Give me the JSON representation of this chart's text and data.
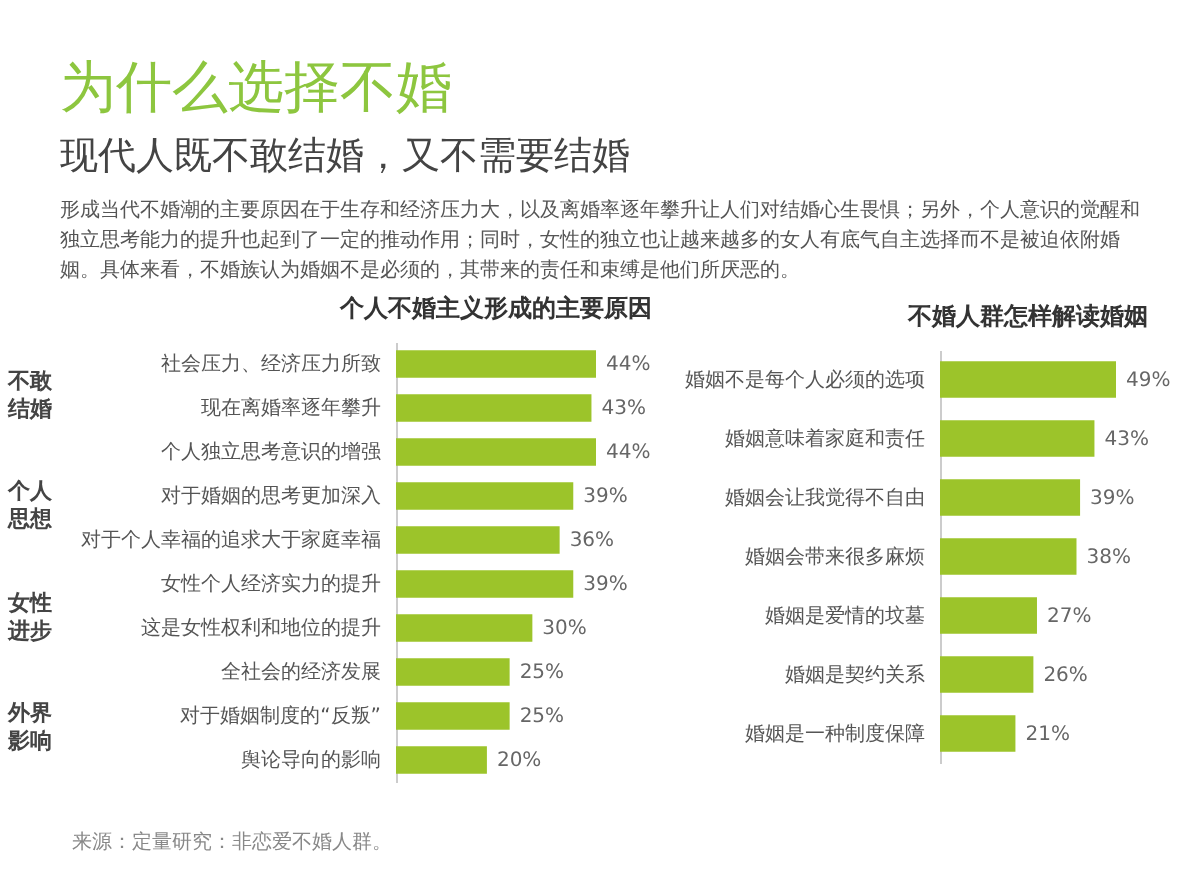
{
  "chart_data": [
    {
      "type": "other",
      "title": "为什么选择不婚",
      "subtitle": "现代人既不敢结婚，又不需要结婚",
      "annotations": [
        "形成当代不婚潮的主要原因在于生存和经济压力大，以及离婚率逐年攀升让人们对结婚心生畏惧；另外，个人意识的觉醒和独立思考能力的提升也起到了一定的推动作用；同时，女性的独立也让越来越多的女人有底气自主选择而不是被迫依附婚姻。具体来看，不婚族认为婚姻不是必须的，其带来的责任和束缚是他们所厌恶的。",
        "来源：定量研究：非恋爱不婚人群。"
      ]
    },
    {
      "type": "bar",
      "orientation": "horizontal",
      "title": "个人不婚主义形成的主要原因",
      "color": "#9cc42a",
      "categories": [
        "社会压力、经济压力所致",
        "现在离婚率逐年攀升",
        "个人独立思考意识的增强",
        "对于婚姻的思考更加深入",
        "对于个人幸福的追求大于家庭幸福",
        "女性个人经济实力的提升",
        "这是女性权利和地位的提升",
        "全社会的经济发展",
        "对于婚姻制度的“反叛”",
        "舆论导向的影响"
      ],
      "values": [
        44,
        43,
        44,
        39,
        36,
        39,
        30,
        25,
        25,
        20
      ],
      "value_labels": [
        "44%",
        "43%",
        "44%",
        "39%",
        "36%",
        "39%",
        "30%",
        "25%",
        "25%",
        "20%"
      ],
      "annotations": [
        "不敢结婚",
        "个人思想",
        "女性进步",
        "外界影响"
      ]
    },
    {
      "type": "bar",
      "orientation": "horizontal",
      "title": "不婚人群怎样解读婚姻",
      "color": "#9cc42a",
      "categories": [
        "婚姻不是每个人必须的选项",
        "婚姻意味着家庭和责任",
        "婚姻会让我觉得不自由",
        "婚姻会带来很多麻烦",
        "婚姻是爱情的坟墓",
        "婚姻是契约关系",
        "婚姻是一种制度保障"
      ],
      "values": [
        49,
        43,
        39,
        38,
        27,
        26,
        21
      ],
      "value_labels": [
        "49%",
        "43%",
        "39%",
        "38%",
        "27%",
        "26%",
        "21%"
      ]
    }
  ]
}
